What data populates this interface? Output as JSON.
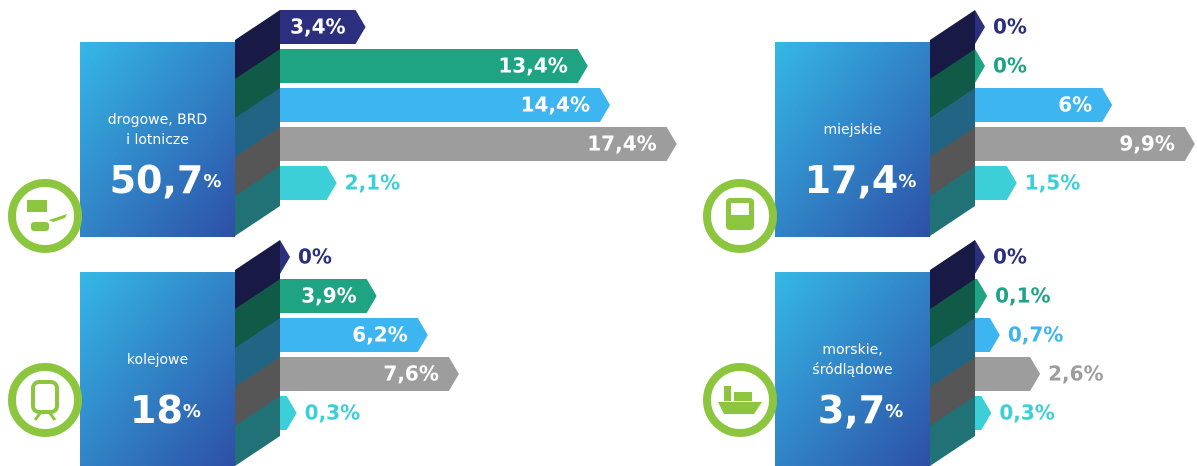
{
  "chart_data": [
    {
      "type": "bar",
      "title": [
        "drogowe, BRD",
        "i lotnicze"
      ],
      "total": "50,7",
      "unit": "%",
      "values": [
        3.4,
        13.4,
        14.4,
        17.4,
        2.1
      ],
      "value_labels": [
        "3,4%",
        "13,4%",
        "14,4%",
        "17,4%",
        "2,1%"
      ],
      "colors": [
        "#2b2f7e",
        "#1ea383",
        "#3db5f0",
        "#9d9d9d",
        "#3ccfd8"
      ],
      "xlim": [
        0,
        18
      ]
    },
    {
      "type": "bar",
      "title": [
        "kolejowe"
      ],
      "total": "18",
      "unit": "%",
      "values": [
        0,
        3.9,
        6.2,
        7.6,
        0.3
      ],
      "value_labels": [
        "0%",
        "3,9%",
        "6,2%",
        "7,6%",
        "0,3%"
      ],
      "colors": [
        "#2b2f7e",
        "#1ea383",
        "#3db5f0",
        "#9d9d9d",
        "#3ccfd8"
      ],
      "xlim": [
        0,
        18
      ]
    },
    {
      "type": "bar",
      "title": [
        "miejskie"
      ],
      "total": "17,4",
      "unit": "%",
      "values": [
        0,
        0,
        6,
        9.9,
        1.5
      ],
      "value_labels": [
        "0%",
        "0%",
        "6%",
        "9,9%",
        "1,5%"
      ],
      "colors": [
        "#2b2f7e",
        "#1ea383",
        "#3db5f0",
        "#9d9d9d",
        "#3ccfd8"
      ],
      "xlim": [
        0,
        10
      ]
    },
    {
      "type": "bar",
      "title": [
        "morskie,",
        "śródlądowe"
      ],
      "total": "3,7",
      "unit": "%",
      "values": [
        0,
        0.1,
        0.7,
        2.6,
        0.3
      ],
      "value_labels": [
        "0%",
        "0,1%",
        "0,7%",
        "2,6%",
        "0,3%"
      ],
      "colors": [
        "#2b2f7e",
        "#1ea383",
        "#3db5f0",
        "#9d9d9d",
        "#3ccfd8"
      ],
      "xlim": [
        0,
        10
      ]
    }
  ]
}
